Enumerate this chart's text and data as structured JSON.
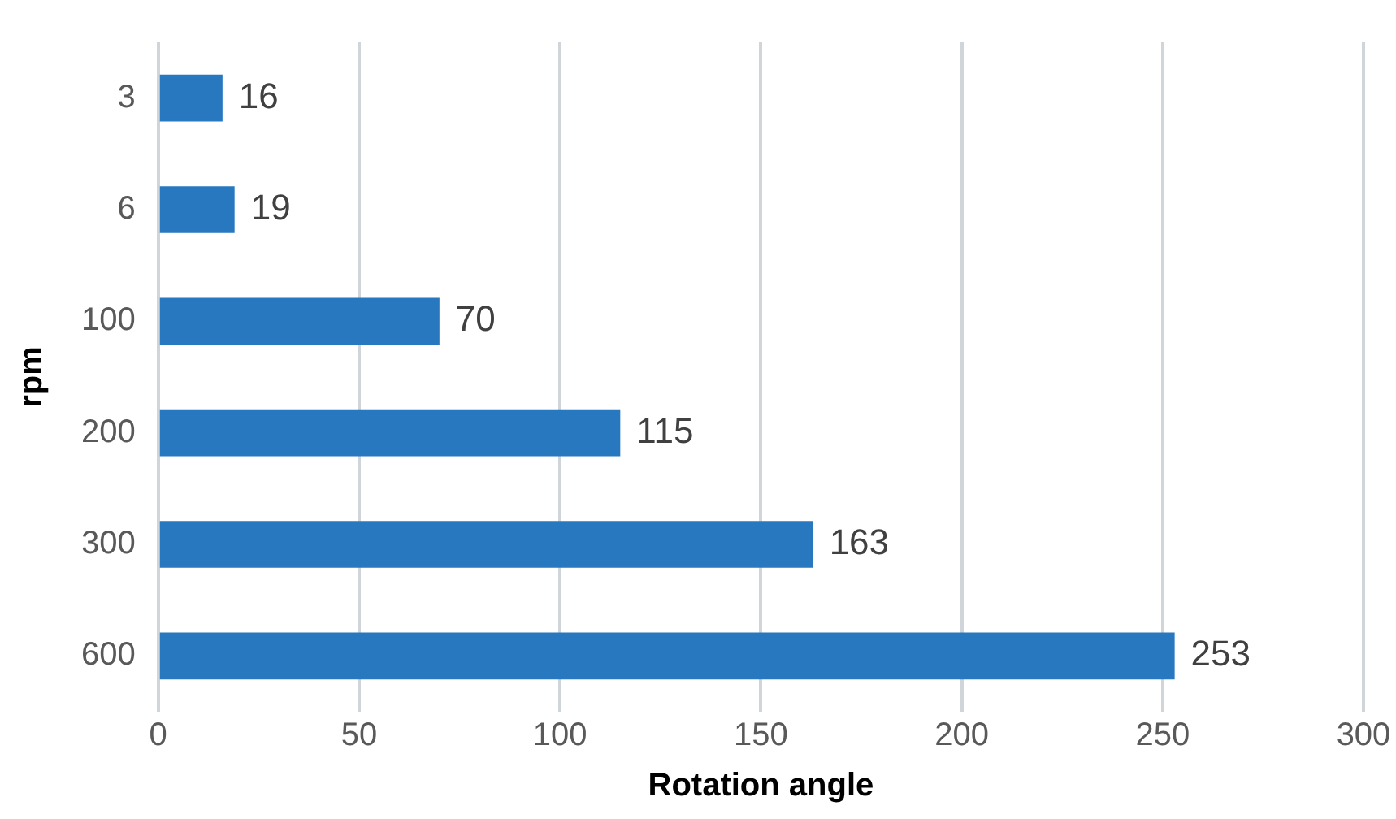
{
  "chart_data": {
    "type": "bar",
    "orientation": "horizontal",
    "xlabel": "Rotation angle",
    "ylabel": "rpm",
    "categories": [
      "3",
      "6",
      "100",
      "200",
      "300",
      "600"
    ],
    "values": [
      16,
      19,
      70,
      115,
      163,
      253
    ],
    "color": "#2878c0",
    "xlim": [
      0,
      300
    ],
    "xticks": [
      0,
      50,
      100,
      150,
      200,
      250,
      300
    ],
    "grid": "x",
    "data_labels": true,
    "legend": false
  }
}
